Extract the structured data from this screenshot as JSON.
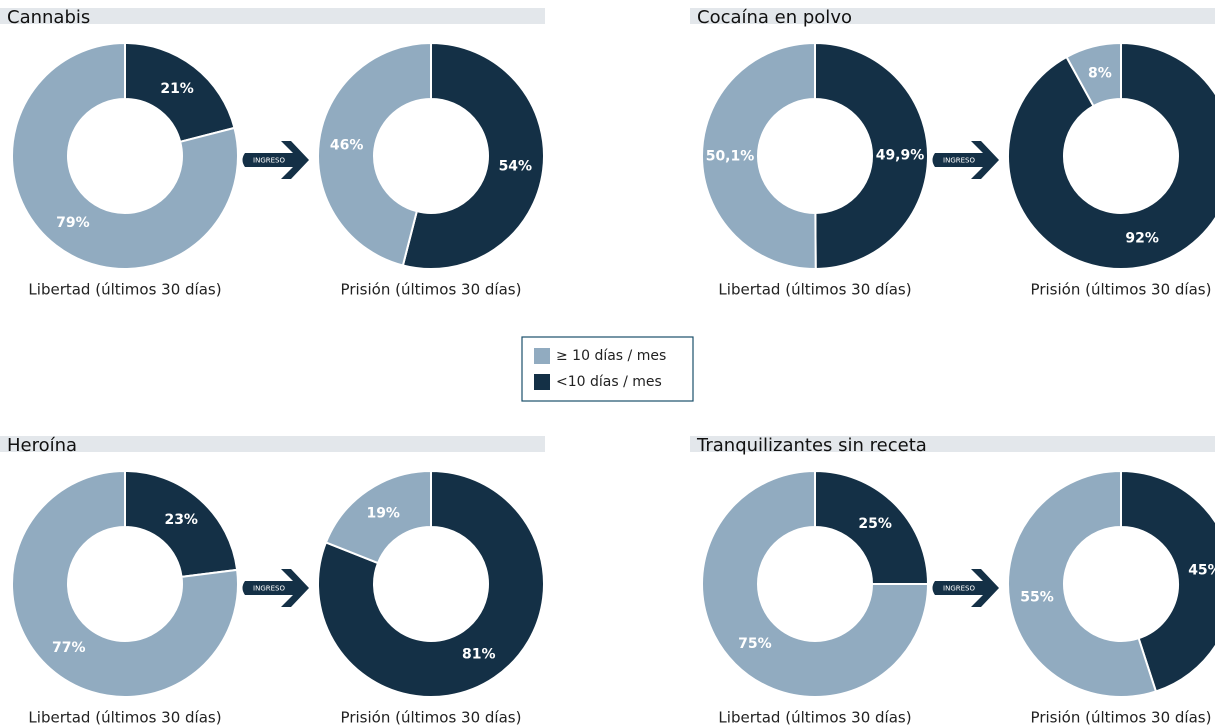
{
  "legend": {
    "items": [
      {
        "label": "≥ 10 días / mes",
        "color": "#91abc0"
      },
      {
        "label": "<10 días / mes",
        "color": "#143046"
      }
    ]
  },
  "chart_data": [
    {
      "type": "pie",
      "title": "Cannabis",
      "annotation": "INGRESO",
      "series": [
        {
          "name": "Libertad (últimos 30 días)",
          "values": [
            79,
            21
          ],
          "value_labels": [
            "79%",
            "21%"
          ]
        },
        {
          "name": "Prisión (últimos 30 días)",
          "values": [
            46,
            54
          ],
          "value_labels": [
            "46%",
            "54%"
          ]
        }
      ]
    },
    {
      "type": "pie",
      "title": "Cocaína en polvo",
      "annotation": "INGRESO",
      "series": [
        {
          "name": "Libertad (últimos 30 días)",
          "values": [
            50.1,
            49.9
          ],
          "value_labels": [
            "50,1%",
            "49,9%"
          ]
        },
        {
          "name": "Prisión (últimos 30 días)",
          "values": [
            8,
            92
          ],
          "value_labels": [
            "8%",
            "92%"
          ]
        }
      ]
    },
    {
      "type": "pie",
      "title": "Heroína",
      "annotation": "INGRESO",
      "series": [
        {
          "name": "Libertad (últimos 30 días)",
          "values": [
            77,
            23
          ],
          "value_labels": [
            "77%",
            "23%"
          ]
        },
        {
          "name": "Prisión (últimos 30 días)",
          "values": [
            19,
            81
          ],
          "value_labels": [
            "19%",
            "81%"
          ]
        }
      ]
    },
    {
      "type": "pie",
      "title": "Tranquilizantes sin receta",
      "annotation": "INGRESO",
      "series": [
        {
          "name": "Libertad (últimos 30 días)",
          "values": [
            75,
            25
          ],
          "value_labels": [
            "75%",
            "25%"
          ]
        },
        {
          "name": "Prisión (últimos 30 días)",
          "values": [
            55,
            45
          ],
          "value_labels": [
            "55%",
            "45%"
          ]
        }
      ]
    }
  ]
}
